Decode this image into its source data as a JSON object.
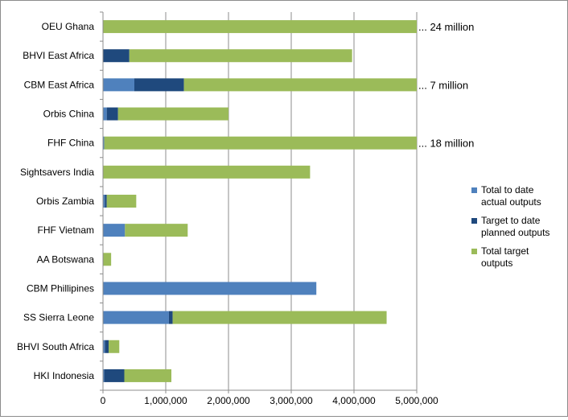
{
  "chart_data": {
    "type": "bar",
    "orientation": "horizontal",
    "stacked": true,
    "categories": [
      "OEU Ghana",
      "BHVI East Africa",
      "CBM East Africa",
      "Orbis China",
      "FHF China",
      "Sightsavers India",
      "Orbis Zambia",
      "FHF Vietnam",
      "AA Botswana",
      "CBM Phillipines",
      "SS Sierra Leone",
      "BHVI South Africa",
      "HKI Indonesia"
    ],
    "series": [
      {
        "name": "Total to date actual outputs",
        "color": "#4F81BD",
        "values": [
          0,
          0,
          500000,
          60000,
          20000,
          0,
          30000,
          350000,
          0,
          3400000,
          1050000,
          30000,
          20000
        ]
      },
      {
        "name": "Target to date planned outputs",
        "color": "#1F497D",
        "values": [
          0,
          420000,
          790000,
          180000,
          0,
          0,
          30000,
          0,
          0,
          0,
          60000,
          60000,
          320000
        ]
      },
      {
        "name": "Total target outputs",
        "color": "#9BBB59",
        "values": [
          5000000,
          3550000,
          3710000,
          1760000,
          4980000,
          3300000,
          470000,
          1000000,
          130000,
          0,
          3410000,
          170000,
          750000
        ]
      }
    ],
    "xlim": [
      0,
      5000000
    ],
    "xticks": [
      0,
      1000000,
      2000000,
      3000000,
      4000000,
      5000000
    ],
    "xtick_labels": [
      "0",
      "1,000,000",
      "2,000,000",
      "3,000,000",
      "4,000,000",
      "5,000,000"
    ],
    "grid": "vertical",
    "legend_position": "right",
    "annotations": [
      {
        "category": "OEU Ghana",
        "text": "... 24 million"
      },
      {
        "category": "CBM East Africa",
        "text": "... 7 million"
      },
      {
        "category": "FHF China",
        "text": "... 18 million"
      }
    ],
    "title": "",
    "xlabel": "",
    "ylabel": ""
  },
  "legend": {
    "items": [
      {
        "line1": "Total to date",
        "line2": "actual outputs",
        "color": "#4F81BD"
      },
      {
        "line1": "Target to date",
        "line2": "planned outputs",
        "color": "#1F497D"
      },
      {
        "line1": "Total target",
        "line2": "outputs",
        "color": "#9BBB59"
      }
    ]
  }
}
